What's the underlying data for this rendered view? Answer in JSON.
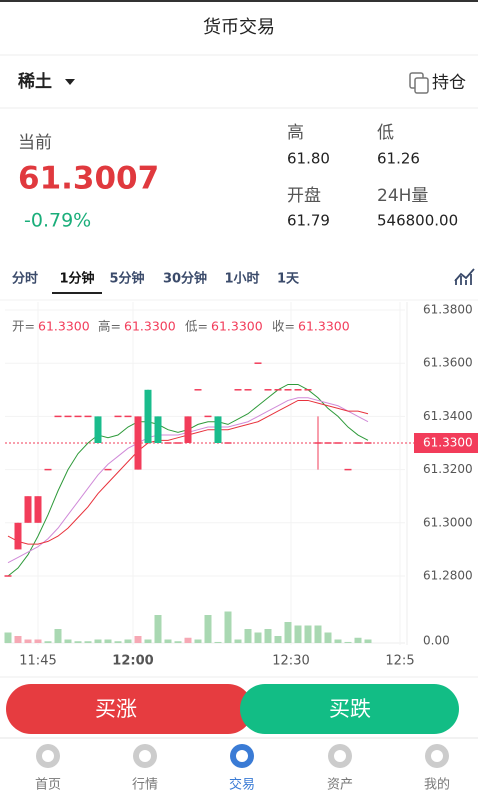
{
  "header": {
    "title": "货币交易"
  },
  "market": {
    "name": "稀土",
    "positions": "持仓"
  },
  "quote": {
    "current_label": "当前",
    "price": "61.3007",
    "change": "-0.79%",
    "stats": [
      {
        "label": "高",
        "value": "61.80"
      },
      {
        "label": "低",
        "value": "61.26"
      },
      {
        "label": "开盘",
        "value": "61.79"
      },
      {
        "label": "24H量",
        "value": "546800.00"
      }
    ]
  },
  "tabs": [
    "分时",
    "1分钟",
    "5分钟",
    "30分钟",
    "1小时",
    "1天"
  ],
  "active_tab": 1,
  "chart_data": {
    "type": "candlestick",
    "legend": [
      {
        "label": "开=",
        "value": "61.3300"
      },
      {
        "label": "高=",
        "value": "61.3300"
      },
      {
        "label": "低=",
        "value": "61.3300"
      },
      {
        "label": "收=",
        "value": "61.3300"
      }
    ],
    "open": [
      61.28,
      61.29,
      61.3,
      61.3,
      61.32,
      61.34,
      61.34,
      61.34,
      61.34,
      61.34,
      61.32,
      61.34,
      61.34,
      61.32,
      61.35,
      61.34,
      61.33,
      61.33,
      61.33,
      61.35,
      61.34,
      61.34,
      61.33,
      61.35,
      61.35,
      61.36,
      61.35,
      61.35,
      61.35,
      61.35,
      61.35,
      61.33,
      61.33,
      61.33,
      61.32,
      61.33,
      61.33
    ],
    "high": [
      61.28,
      61.3,
      61.31,
      61.31,
      61.32,
      61.34,
      61.34,
      61.34,
      61.34,
      61.34,
      61.32,
      61.34,
      61.34,
      61.34,
      61.35,
      61.34,
      61.33,
      61.33,
      61.34,
      61.35,
      61.34,
      61.34,
      61.33,
      61.35,
      61.35,
      61.36,
      61.35,
      61.35,
      61.35,
      61.35,
      61.35,
      61.34,
      61.33,
      61.33,
      61.32,
      61.33,
      61.33
    ],
    "low": [
      61.28,
      61.29,
      61.3,
      61.3,
      61.32,
      61.34,
      61.34,
      61.34,
      61.34,
      61.33,
      61.32,
      61.34,
      61.34,
      61.32,
      61.33,
      61.33,
      61.33,
      61.33,
      61.33,
      61.35,
      61.34,
      61.33,
      61.33,
      61.35,
      61.35,
      61.36,
      61.35,
      61.35,
      61.35,
      61.35,
      61.35,
      61.32,
      61.33,
      61.33,
      61.32,
      61.33,
      61.33
    ],
    "close": [
      61.28,
      61.3,
      61.31,
      61.31,
      61.32,
      61.34,
      61.34,
      61.34,
      61.34,
      61.33,
      61.32,
      61.34,
      61.34,
      61.34,
      61.33,
      61.33,
      61.33,
      61.33,
      61.34,
      61.35,
      61.34,
      61.33,
      61.33,
      61.35,
      61.35,
      61.36,
      61.35,
      61.35,
      61.35,
      61.35,
      61.35,
      61.33,
      61.33,
      61.33,
      61.32,
      61.33,
      61.33
    ],
    "volume": [
      3,
      2,
      1,
      1,
      0.5,
      4,
      1,
      0.5,
      0.5,
      1,
      1,
      0.5,
      1,
      2,
      1,
      8,
      1,
      0.5,
      1.5,
      1,
      8,
      0.3,
      9,
      1,
      4,
      3,
      4,
      2,
      6,
      5,
      5,
      5,
      3,
      1,
      0.3,
      1.5,
      1
    ],
    "up_color": "#f23c5a",
    "down_color": "#1abc8c",
    "up_volume_color": "#f6a8b4",
    "down_volume_color": "#a9d8b2",
    "ma": [
      {
        "color": "#2e9a3a",
        "values": [
          61.28,
          61.283,
          61.288,
          61.295,
          61.303,
          61.312,
          61.32,
          61.326,
          61.33,
          61.333,
          61.332,
          61.333,
          61.336,
          61.338,
          61.338,
          61.337,
          61.335,
          61.334,
          61.335,
          61.337,
          61.338,
          61.338,
          61.337,
          61.339,
          61.341,
          61.344,
          61.347,
          61.35,
          61.352,
          61.352,
          61.35,
          61.347,
          61.343,
          61.34,
          61.336,
          61.333,
          61.331
        ]
      },
      {
        "color": "#d08ad8",
        "values": [
          61.285,
          61.287,
          61.289,
          61.291,
          61.294,
          61.298,
          61.303,
          61.308,
          61.313,
          61.318,
          61.322,
          61.325,
          61.328,
          61.33,
          61.332,
          61.333,
          61.333,
          61.333,
          61.334,
          61.335,
          61.336,
          61.336,
          61.336,
          61.337,
          61.338,
          61.34,
          61.342,
          61.344,
          61.346,
          61.347,
          61.347,
          61.346,
          61.345,
          61.344,
          61.342,
          61.34,
          61.338
        ]
      },
      {
        "color": "#e8323c",
        "values": [
          61.295,
          61.293,
          61.292,
          61.292,
          61.293,
          61.295,
          61.298,
          61.302,
          61.306,
          61.311,
          61.315,
          61.319,
          61.323,
          61.327,
          61.33,
          61.331,
          61.331,
          61.332,
          61.333,
          61.334,
          61.335,
          61.335,
          61.335,
          61.336,
          61.337,
          61.338,
          61.34,
          61.342,
          61.344,
          61.346,
          61.346,
          61.345,
          61.344,
          61.343,
          61.342,
          61.342,
          61.341
        ]
      }
    ],
    "ylim": [
      61.28,
      61.38
    ],
    "yticks": [
      {
        "value": 61.38,
        "label": "61.3800"
      },
      {
        "value": 61.36,
        "label": "61.3600"
      },
      {
        "value": 61.34,
        "label": "61.3400"
      },
      {
        "value": 61.32,
        "label": "61.3200"
      },
      {
        "value": 61.3,
        "label": "61.3000"
      },
      {
        "value": 61.28,
        "label": "61.2800"
      }
    ],
    "vlim": [
      0,
      10
    ],
    "vticks": [
      {
        "value": 0,
        "label": "0.00"
      }
    ],
    "last_price": {
      "value": 61.33,
      "label": "61.3300"
    },
    "xticks": [
      {
        "value": 3,
        "label": "11:45"
      },
      {
        "value": 12.5,
        "label": "12:00"
      },
      {
        "value": 28.3,
        "label": "12:30"
      },
      {
        "value": 39.2,
        "label": "12:5"
      }
    ],
    "grid": true
  },
  "buttons": {
    "buy_up": "买涨",
    "buy_down": "买跌"
  },
  "nav": [
    "首页",
    "行情",
    "交易",
    "资产",
    "我的"
  ],
  "nav_active": 2
}
